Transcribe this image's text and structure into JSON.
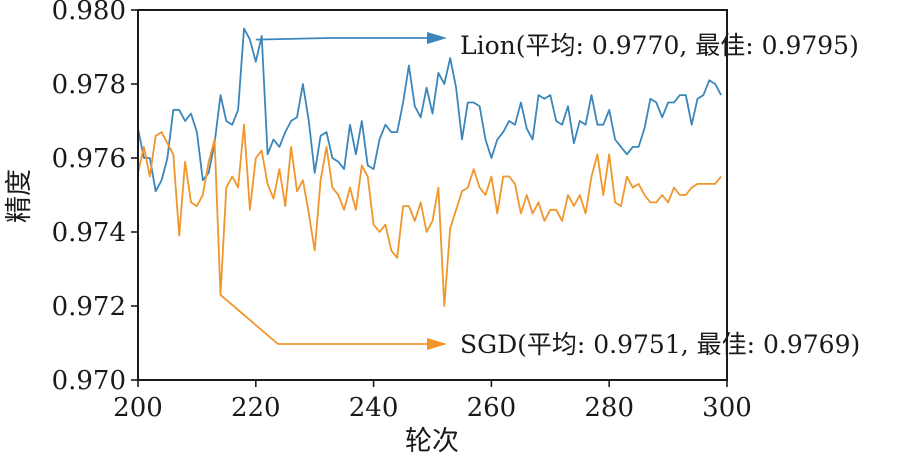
{
  "chart_data": {
    "type": "line",
    "xlabel": "轮次",
    "ylabel": "精度",
    "xlim": [
      200,
      300
    ],
    "ylim": [
      0.97,
      0.98
    ],
    "x_ticks": [
      "200",
      "220",
      "240",
      "260",
      "280",
      "300"
    ],
    "y_ticks": [
      "0.970",
      "0.972",
      "0.974",
      "0.976",
      "0.978",
      "0.980"
    ],
    "grid": false,
    "series": [
      {
        "name": "Lion",
        "color": "#3a86bb",
        "x": [
          200,
          201,
          202,
          203,
          204,
          205,
          206,
          207,
          208,
          209,
          210,
          211,
          212,
          213,
          214,
          215,
          216,
          217,
          218,
          219,
          220,
          221,
          222,
          223,
          224,
          225,
          226,
          227,
          228,
          229,
          230,
          231,
          232,
          233,
          234,
          235,
          236,
          237,
          238,
          239,
          240,
          241,
          242,
          243,
          244,
          245,
          246,
          247,
          248,
          249,
          250,
          251,
          252,
          253,
          254,
          255,
          256,
          257,
          258,
          259,
          260,
          261,
          262,
          263,
          264,
          265,
          266,
          267,
          268,
          269,
          270,
          271,
          272,
          273,
          274,
          275,
          276,
          277,
          278,
          279,
          280,
          281,
          282,
          283,
          284,
          285,
          286,
          287,
          288,
          289,
          290,
          291,
          292,
          293,
          294,
          295,
          296,
          297,
          298,
          299
        ],
        "values": [
          0.9768,
          0.976,
          0.976,
          0.9751,
          0.9754,
          0.976,
          0.9773,
          0.9773,
          0.977,
          0.9772,
          0.9767,
          0.9754,
          0.9756,
          0.9764,
          0.9777,
          0.977,
          0.9769,
          0.9773,
          0.9795,
          0.9792,
          0.9786,
          0.9793,
          0.9761,
          0.9765,
          0.9763,
          0.9767,
          0.977,
          0.9771,
          0.978,
          0.977,
          0.9756,
          0.9766,
          0.9767,
          0.976,
          0.9759,
          0.9757,
          0.9769,
          0.9761,
          0.977,
          0.9758,
          0.9757,
          0.9765,
          0.9769,
          0.9767,
          0.9767,
          0.9775,
          0.9785,
          0.9774,
          0.9771,
          0.9779,
          0.9772,
          0.9783,
          0.978,
          0.9787,
          0.9779,
          0.9765,
          0.9775,
          0.9775,
          0.9774,
          0.9765,
          0.976,
          0.9765,
          0.9767,
          0.977,
          0.9769,
          0.9775,
          0.9768,
          0.9765,
          0.9777,
          0.9776,
          0.9777,
          0.977,
          0.9769,
          0.9774,
          0.9764,
          0.977,
          0.9769,
          0.9777,
          0.9769,
          0.9769,
          0.9773,
          0.9765,
          0.9763,
          0.9761,
          0.9763,
          0.9763,
          0.9768,
          0.9776,
          0.9775,
          0.9771,
          0.9775,
          0.9775,
          0.9777,
          0.9777,
          0.9769,
          0.9776,
          0.9777,
          0.9781,
          0.978,
          0.9777
        ]
      },
      {
        "name": "SGD",
        "color": "#f0962a",
        "x": [
          200,
          201,
          202,
          203,
          204,
          205,
          206,
          207,
          208,
          209,
          210,
          211,
          212,
          213,
          214,
          215,
          216,
          217,
          218,
          219,
          220,
          221,
          222,
          223,
          224,
          225,
          226,
          227,
          228,
          229,
          230,
          231,
          232,
          233,
          234,
          235,
          236,
          237,
          238,
          239,
          240,
          241,
          242,
          243,
          244,
          245,
          246,
          247,
          248,
          249,
          250,
          251,
          252,
          253,
          254,
          255,
          256,
          257,
          258,
          259,
          260,
          261,
          262,
          263,
          264,
          265,
          266,
          267,
          268,
          269,
          270,
          271,
          272,
          273,
          274,
          275,
          276,
          277,
          278,
          279,
          280,
          281,
          282,
          283,
          284,
          285,
          286,
          287,
          288,
          289,
          290,
          291,
          292,
          293,
          294,
          295,
          296,
          297,
          298,
          299
        ],
        "values": [
          0.9756,
          0.9763,
          0.9755,
          0.9766,
          0.9767,
          0.9764,
          0.9761,
          0.9739,
          0.9759,
          0.9748,
          0.9747,
          0.975,
          0.9759,
          0.9765,
          0.9723,
          0.9752,
          0.9755,
          0.9752,
          0.9769,
          0.9746,
          0.976,
          0.9762,
          0.9753,
          0.9749,
          0.9757,
          0.9747,
          0.9763,
          0.9751,
          0.9754,
          0.9745,
          0.9735,
          0.9754,
          0.9763,
          0.9752,
          0.975,
          0.9746,
          0.9752,
          0.9746,
          0.9758,
          0.9755,
          0.9742,
          0.974,
          0.9742,
          0.9735,
          0.9733,
          0.9747,
          0.9747,
          0.9743,
          0.9748,
          0.974,
          0.9743,
          0.9752,
          0.972,
          0.9741,
          0.9746,
          0.9751,
          0.9752,
          0.9757,
          0.9752,
          0.975,
          0.9755,
          0.9745,
          0.9755,
          0.9755,
          0.9753,
          0.9745,
          0.975,
          0.9745,
          0.9748,
          0.9743,
          0.9746,
          0.9746,
          0.9743,
          0.975,
          0.9747,
          0.975,
          0.9745,
          0.9755,
          0.9761,
          0.975,
          0.9761,
          0.9748,
          0.9747,
          0.9755,
          0.9752,
          0.9753,
          0.975,
          0.9748,
          0.9748,
          0.975,
          0.9748,
          0.9752,
          0.975,
          0.975,
          0.9752,
          0.9753,
          0.9753,
          0.9753,
          0.9753,
          0.9755
        ]
      }
    ],
    "annotations": [
      {
        "series": "Lion",
        "text": "Lion(平均: 0.9770, 最佳: 0.9795)",
        "color": "#3a86bb",
        "point": [
          220,
          0.9792
        ]
      },
      {
        "series": "SGD",
        "text": "SGD(平均: 0.9751, 最佳: 0.9769)",
        "color": "#f0962a",
        "point": [
          214,
          0.9723
        ]
      }
    ]
  }
}
